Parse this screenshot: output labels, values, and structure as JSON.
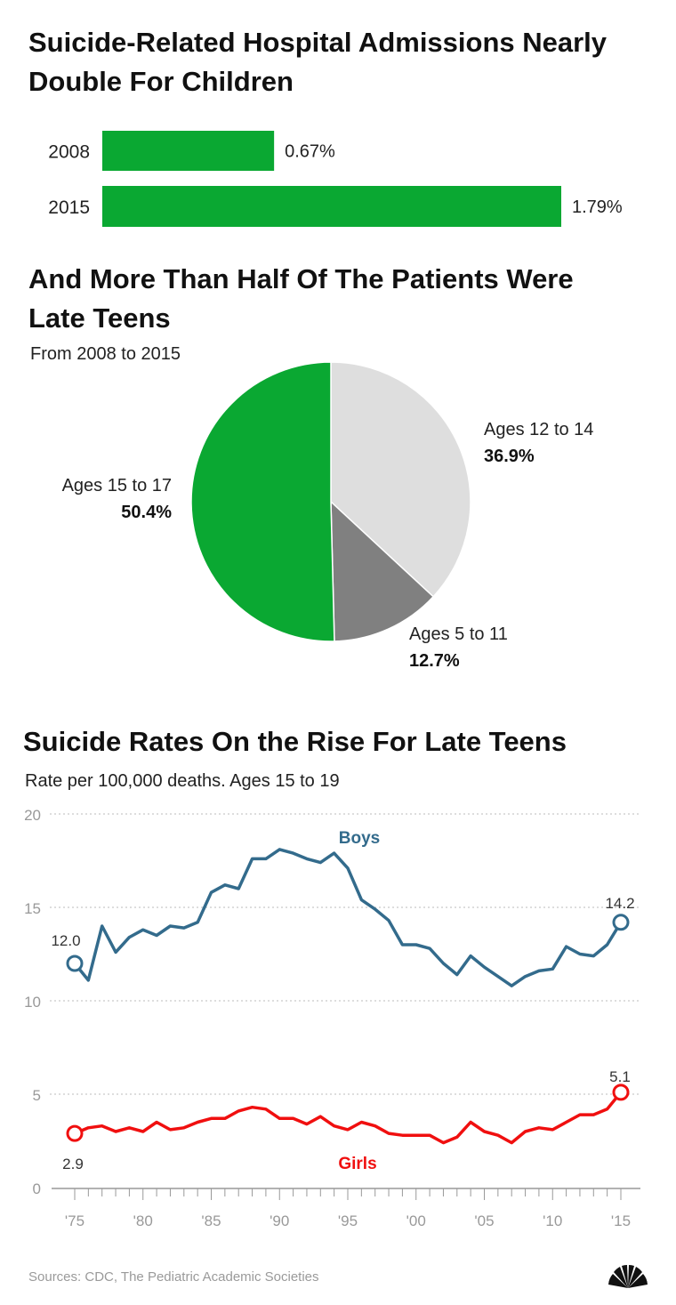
{
  "colors": {
    "green": "#0aa832",
    "light_gray": "#dedede",
    "dark_gray": "#808080",
    "boys": "#336b8c",
    "girls": "#f00f0f",
    "grid": "#bbbbbb"
  },
  "logo": {
    "icon": "nbc-peacock-icon"
  },
  "source": "Sources:  CDC, The Pediatric Academic Societies",
  "chart_data": [
    {
      "type": "bar",
      "title": "Suicide-Related Hospital Admissions Nearly Double For Children",
      "categories": [
        "2008",
        "2015"
      ],
      "values": [
        0.67,
        1.79
      ],
      "value_labels": [
        "0.67%",
        "1.79%"
      ],
      "orientation": "horizontal"
    },
    {
      "type": "pie",
      "title": "And More Than Half Of The Patients Were Late Teens",
      "subtitle": "From 2008 to 2015",
      "slices": [
        {
          "label": "Ages 12 to 14",
          "value": 36.9,
          "value_label": "36.9%"
        },
        {
          "label": "Ages 5 to 11",
          "value": 12.7,
          "value_label": "12.7%"
        },
        {
          "label": "Ages 15 to 17",
          "value": 50.4,
          "value_label": "50.4%"
        }
      ]
    },
    {
      "type": "line",
      "title": "Suicide Rates On the Rise For Late Teens",
      "subtitle": "Rate per 100,000 deaths. Ages 15 to 19",
      "x": [
        1975,
        1976,
        1977,
        1978,
        1979,
        1980,
        1981,
        1982,
        1983,
        1984,
        1985,
        1986,
        1987,
        1988,
        1989,
        1990,
        1991,
        1992,
        1993,
        1994,
        1995,
        1996,
        1997,
        1998,
        1999,
        2000,
        2001,
        2002,
        2003,
        2004,
        2005,
        2006,
        2007,
        2008,
        2009,
        2010,
        2011,
        2012,
        2013,
        2014,
        2015
      ],
      "x_tick_labels": [
        "'75",
        "'80",
        "'85",
        "'90",
        "'95",
        "'00",
        "'05",
        "'10",
        "'15"
      ],
      "x_tick_values": [
        1975,
        1980,
        1985,
        1990,
        1995,
        2000,
        2005,
        2010,
        2015
      ],
      "ylim": [
        0,
        20
      ],
      "yticks": [
        0,
        5,
        10,
        15,
        20
      ],
      "grid": true,
      "series": [
        {
          "name": "Boys",
          "values": [
            12.0,
            11.1,
            14.0,
            12.6,
            13.4,
            13.8,
            13.5,
            14.0,
            13.9,
            14.2,
            15.8,
            16.2,
            16.0,
            17.6,
            17.6,
            18.1,
            17.9,
            17.6,
            17.4,
            17.9,
            17.1,
            15.4,
            14.9,
            14.3,
            13.0,
            13.0,
            12.8,
            12.0,
            11.4,
            12.4,
            11.8,
            11.3,
            10.8,
            11.3,
            11.6,
            11.7,
            12.9,
            12.5,
            12.4,
            13.0,
            14.2
          ],
          "start_label": "12.0",
          "end_label": "14.2"
        },
        {
          "name": "Girls",
          "values": [
            2.9,
            3.2,
            3.3,
            3.0,
            3.2,
            3.0,
            3.5,
            3.1,
            3.2,
            3.5,
            3.7,
            3.7,
            4.1,
            4.3,
            4.2,
            3.7,
            3.7,
            3.4,
            3.8,
            3.3,
            3.1,
            3.5,
            3.3,
            2.9,
            2.8,
            2.8,
            2.8,
            2.4,
            2.7,
            3.5,
            3.0,
            2.8,
            2.4,
            3.0,
            3.2,
            3.1,
            3.5,
            3.9,
            3.9,
            4.2,
            5.1
          ],
          "start_label": "2.9",
          "end_label": "5.1"
        }
      ]
    }
  ]
}
